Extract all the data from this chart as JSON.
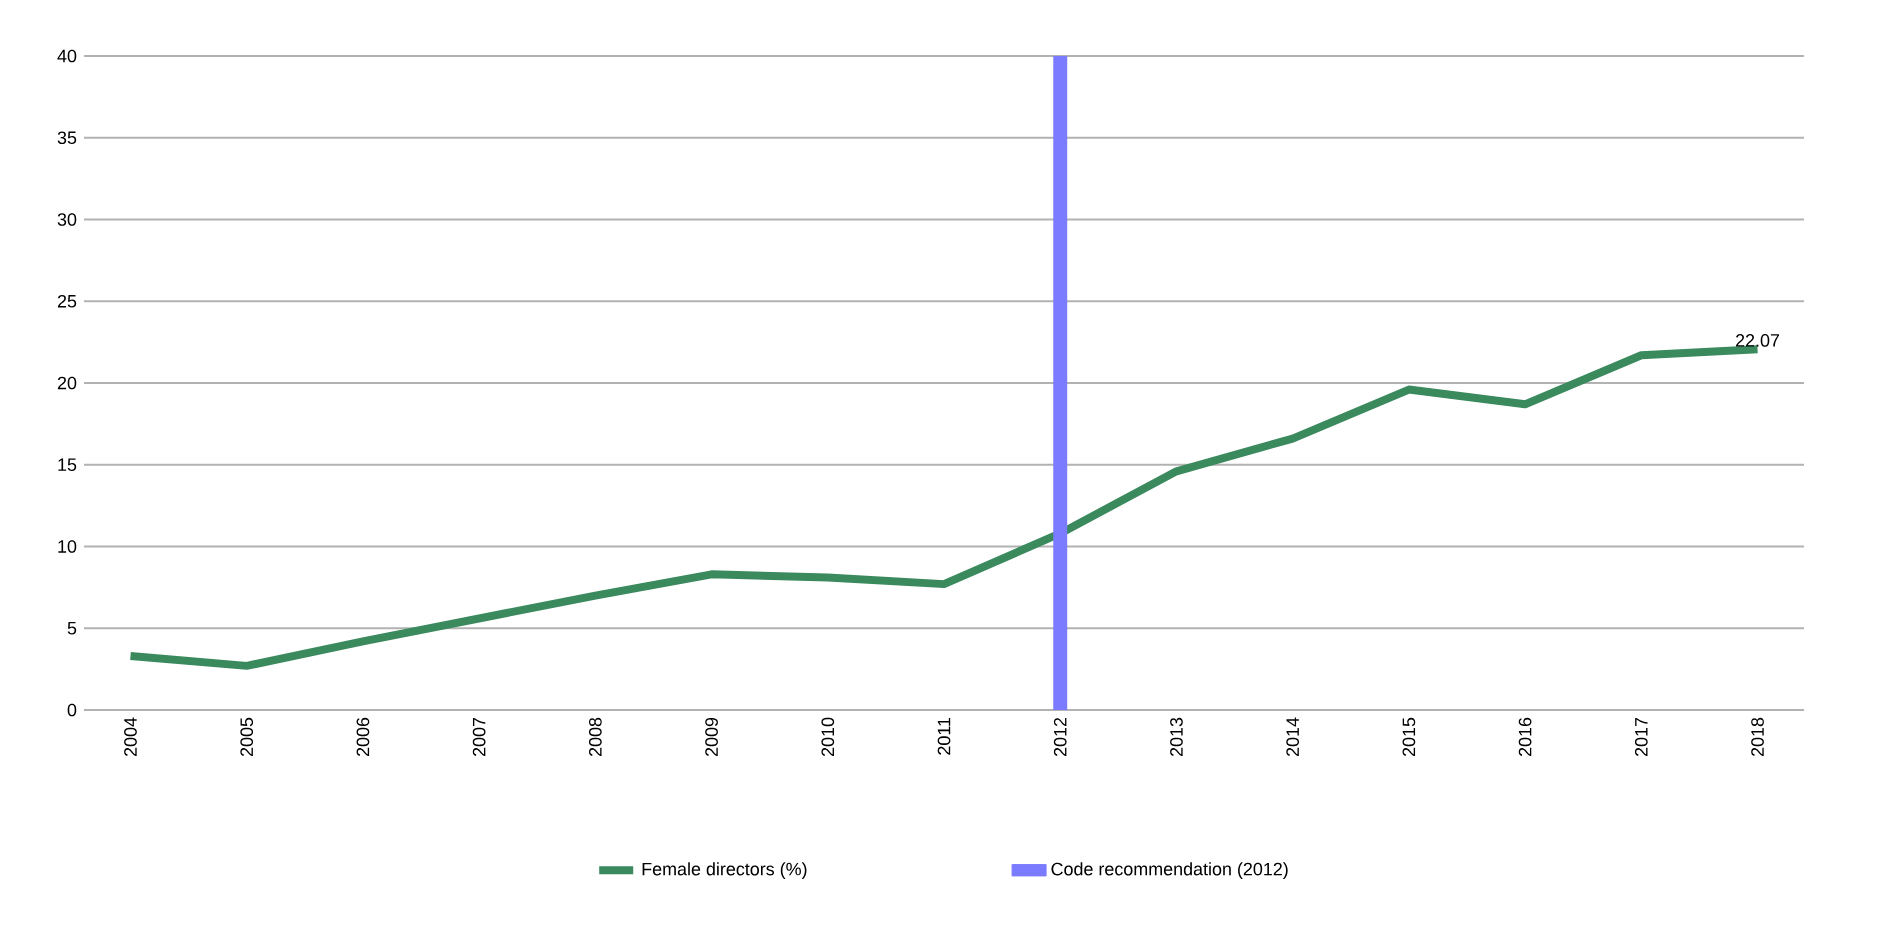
{
  "chart_data": {
    "type": "line",
    "categories": [
      "2004",
      "2005",
      "2006",
      "2007",
      "2008",
      "2009",
      "2010",
      "2011",
      "2012",
      "2013",
      "2014",
      "2015",
      "2016",
      "2017",
      "2018"
    ],
    "series": [
      {
        "name": "Female directors (%)",
        "color": "#3a8a5e",
        "values": [
          3.3,
          2.7,
          4.2,
          5.6,
          7.0,
          8.3,
          8.1,
          7.7,
          10.8,
          14.6,
          16.6,
          19.6,
          18.7,
          21.7,
          22.07
        ],
        "value_labels": [
          null,
          null,
          null,
          null,
          null,
          null,
          null,
          null,
          null,
          null,
          null,
          null,
          null,
          null,
          "22.07"
        ]
      }
    ],
    "ref_lines": [
      {
        "axis": "x",
        "value": "2012",
        "label": "Code recommendation (2012)",
        "color": "#7b7bff"
      }
    ],
    "ylim": [
      0,
      40
    ],
    "yticks": [
      0,
      5,
      10,
      15,
      20,
      25,
      30,
      35,
      40
    ],
    "grid": "y",
    "legend": "bottom",
    "marker": "none",
    "line_style": "solid"
  }
}
